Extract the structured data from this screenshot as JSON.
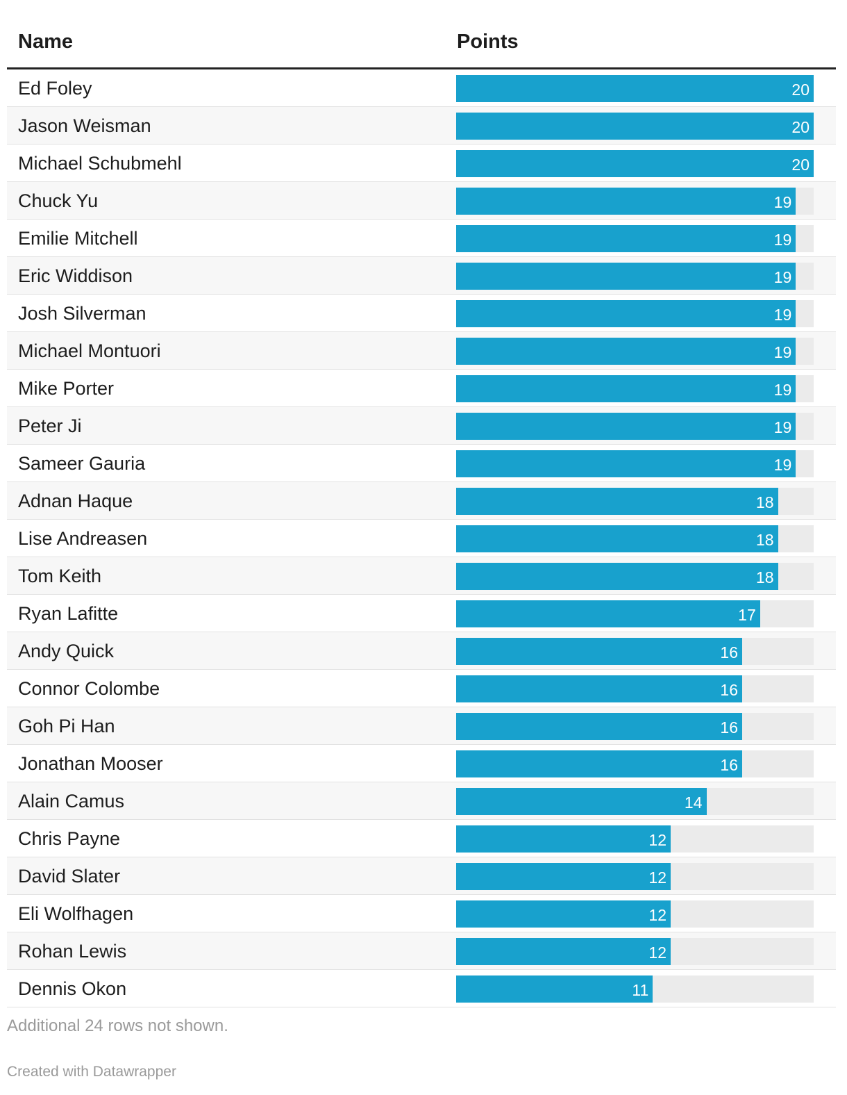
{
  "headers": {
    "name": "Name",
    "points": "Points"
  },
  "chart_data": {
    "type": "table",
    "columns": [
      "Name",
      "Points"
    ],
    "max": 20,
    "bar_color": "#18a1cd",
    "track_color": "#ebebeb",
    "rows": [
      {
        "name": "Ed Foley",
        "points": 20
      },
      {
        "name": "Jason Weisman",
        "points": 20
      },
      {
        "name": "Michael Schubmehl",
        "points": 20
      },
      {
        "name": "Chuck Yu",
        "points": 19
      },
      {
        "name": "Emilie Mitchell",
        "points": 19
      },
      {
        "name": "Eric Widdison",
        "points": 19
      },
      {
        "name": "Josh Silverman",
        "points": 19
      },
      {
        "name": "Michael Montuori",
        "points": 19
      },
      {
        "name": "Mike Porter",
        "points": 19
      },
      {
        "name": "Peter Ji",
        "points": 19
      },
      {
        "name": "Sameer Gauria",
        "points": 19
      },
      {
        "name": "Adnan Haque",
        "points": 18
      },
      {
        "name": "Lise Andreasen",
        "points": 18
      },
      {
        "name": "Tom Keith",
        "points": 18
      },
      {
        "name": "Ryan Lafitte",
        "points": 17
      },
      {
        "name": "Andy Quick",
        "points": 16
      },
      {
        "name": "Connor Colombe",
        "points": 16
      },
      {
        "name": "Goh Pi Han",
        "points": 16
      },
      {
        "name": "Jonathan Mooser",
        "points": 16
      },
      {
        "name": "Alain Camus",
        "points": 14
      },
      {
        "name": "Chris Payne",
        "points": 12
      },
      {
        "name": "David Slater",
        "points": 12
      },
      {
        "name": "Eli Wolfhagen",
        "points": 12
      },
      {
        "name": "Rohan Lewis",
        "points": 12
      },
      {
        "name": "Dennis Okon",
        "points": 11
      }
    ]
  },
  "footer": {
    "note": "Additional 24 rows not shown.",
    "credit": "Created with Datawrapper"
  }
}
